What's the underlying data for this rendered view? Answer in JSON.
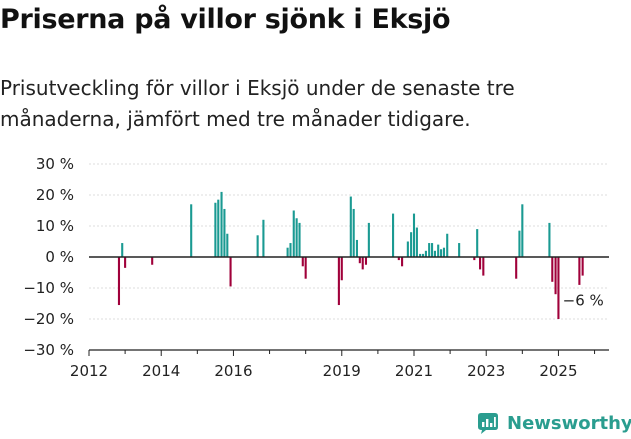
{
  "title": "Priserna på villor sjönk i Eksjö",
  "subtitle": "Prisutveckling för villor i Eksjö under de senaste tre månaderna, jämfört med tre månader tidigare.",
  "brand": {
    "name": "Newsworthy",
    "icon": "newsworthy-logo-icon",
    "color": "#2a9d8f"
  },
  "colors": {
    "positive": "#1a9a92",
    "negative": "#a0003a",
    "zero_line": "#222222",
    "grid": "#dddddd"
  },
  "chart_data": {
    "type": "bar",
    "title": "Priserna på villor sjönk i Eksjö",
    "xlabel": "",
    "ylabel": "",
    "ylim": [
      -30,
      30
    ],
    "xlim": [
      2012,
      2026.4
    ],
    "y_ticks": [
      30,
      20,
      10,
      0,
      -10,
      -20,
      -30
    ],
    "y_tick_labels": [
      "30 %",
      "20 %",
      "10 %",
      "0 %",
      "−10 %",
      "−20 %",
      "−30 %"
    ],
    "x_ticks": [
      2012,
      2014,
      2016,
      2019,
      2021,
      2023,
      2025
    ],
    "x_tick_labels": [
      "2012",
      "2014",
      "2016",
      "2019",
      "2021",
      "2023",
      "2025"
    ],
    "last_value_label": "−6 %",
    "x": [
      2012.83,
      2012.92,
      2013.0,
      2013.75,
      2014.83,
      2015.5,
      2015.58,
      2015.67,
      2015.75,
      2015.83,
      2015.92,
      2016.67,
      2016.83,
      2017.5,
      2017.58,
      2017.67,
      2017.75,
      2017.83,
      2017.92,
      2018.0,
      2018.08,
      2018.92,
      2019.0,
      2019.25,
      2019.33,
      2019.42,
      2019.5,
      2019.58,
      2019.67,
      2019.75,
      2019.83,
      2020.42,
      2020.58,
      2020.67,
      2020.83,
      2020.92,
      2021.0,
      2021.08,
      2021.17,
      2021.25,
      2021.33,
      2021.42,
      2021.5,
      2021.58,
      2021.67,
      2021.75,
      2021.83,
      2021.92,
      2022.25,
      2022.67,
      2022.75,
      2022.83,
      2022.92,
      2023.83,
      2023.92,
      2024.0,
      2024.75,
      2024.83,
      2024.92,
      2025.0,
      2025.58,
      2025.67
    ],
    "values": [
      -15.5,
      4.5,
      -3.5,
      -2.5,
      17,
      17.5,
      18.5,
      21,
      15.5,
      7.5,
      -9.5,
      7,
      12,
      3,
      4.5,
      15,
      12.5,
      11,
      -3,
      -7,
      0,
      -15.5,
      -7.5,
      19.5,
      15.5,
      5.5,
      -2,
      -4,
      -2.5,
      11,
      0,
      14,
      -1,
      -3,
      5,
      8,
      14,
      9.5,
      1,
      1,
      2,
      4.5,
      4.5,
      2,
      4,
      2.5,
      3,
      7.5,
      4.5,
      -1,
      9,
      -4,
      -6,
      -7,
      8.5,
      17,
      11,
      -8,
      -12,
      -20,
      -9,
      -6
    ]
  }
}
